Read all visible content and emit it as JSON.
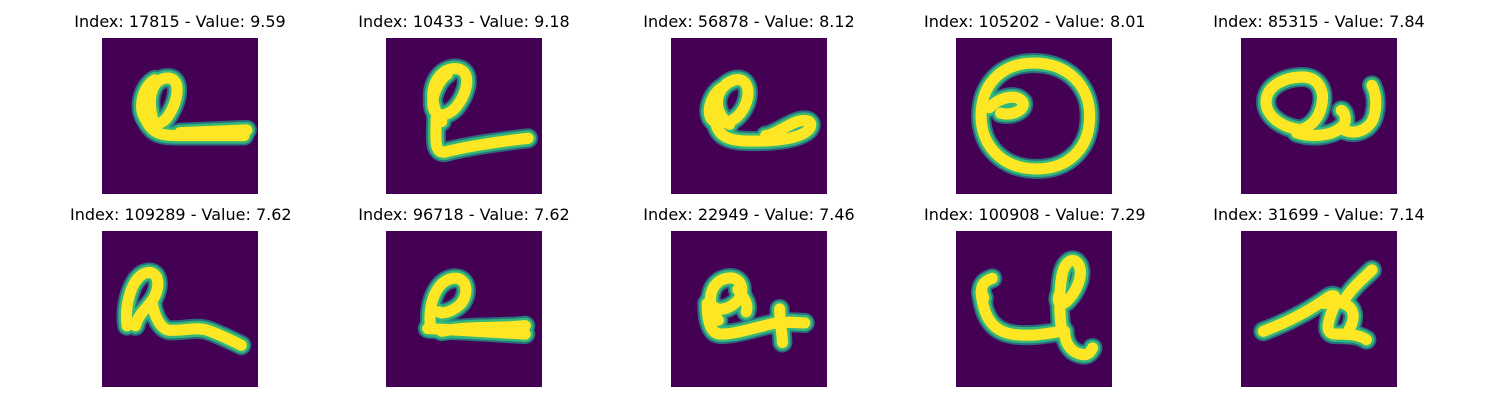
{
  "colors": {
    "background": "#440154",
    "stroke": "#fde725",
    "edge": "#35b779",
    "mid": "#21908d"
  },
  "panels": [
    {
      "title": "Index: 17815 - Value: 9.59",
      "glyph": "a-short-tail"
    },
    {
      "title": "Index: 10433 - Value: 9.18",
      "glyph": "a-tall-tail"
    },
    {
      "title": "Index: 56878 - Value: 8.12",
      "glyph": "a-wide"
    },
    {
      "title": "Index: 105202 - Value: 8.01",
      "glyph": "circle"
    },
    {
      "title": "Index: 85315 - Value: 7.84",
      "glyph": "a-hook"
    },
    {
      "title": "Index: 109289 - Value: 7.62",
      "glyph": "cursive-a-low"
    },
    {
      "title": "Index: 96718 - Value: 7.62",
      "glyph": "cursive-a-flat"
    },
    {
      "title": "Index: 22949 - Value: 7.46",
      "glyph": "a-cross"
    },
    {
      "title": "Index: 100908 - Value: 7.29",
      "glyph": "cursive-g"
    },
    {
      "title": "Index: 31699 - Value: 7.14",
      "glyph": "zigzag"
    }
  ]
}
